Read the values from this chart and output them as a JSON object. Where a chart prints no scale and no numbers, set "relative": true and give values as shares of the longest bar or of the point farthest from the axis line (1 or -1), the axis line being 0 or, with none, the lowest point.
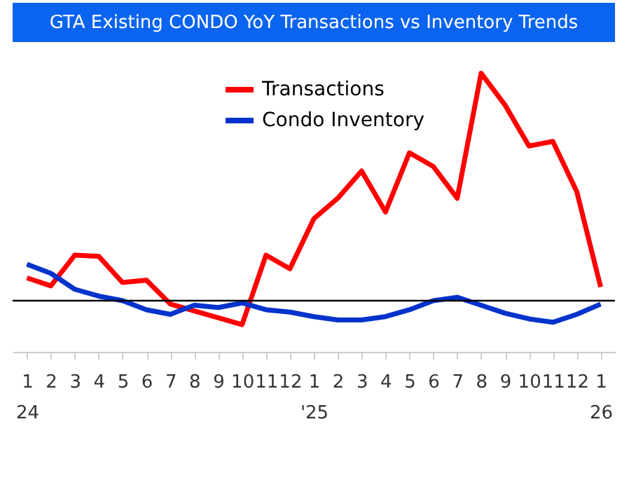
{
  "chart_data": {
    "type": "line",
    "title": "GTA Existing CONDO YoY Transactions vs Inventory Trends",
    "categories": [
      "1\n24",
      "2",
      "3",
      "4",
      "5",
      "6",
      "7",
      "8",
      "9",
      "10",
      "11",
      "12",
      "1\n'25",
      "2",
      "3",
      "4",
      "5",
      "6",
      "7",
      "8",
      "9",
      "10",
      "11",
      "12",
      "1\n26"
    ],
    "relative": true,
    "legend": "top",
    "grid": false,
    "marker": "none",
    "line_style": "solid",
    "series": [
      {
        "name": "Transactions",
        "color": "#ff0000",
        "values": [
          0.1,
          0.065,
          0.2,
          0.195,
          0.08,
          0.09,
          -0.015,
          -0.045,
          -0.075,
          -0.105,
          0.2,
          0.14,
          0.36,
          0.45,
          0.57,
          0.39,
          0.65,
          0.59,
          0.45,
          1.0,
          0.86,
          0.68,
          0.7,
          0.48,
          0.06
        ]
      },
      {
        "name": "Condo Inventory",
        "color": "#0033cc",
        "values": [
          0.16,
          0.12,
          0.05,
          0.02,
          0.0,
          -0.04,
          -0.06,
          -0.02,
          -0.03,
          -0.01,
          -0.04,
          -0.05,
          -0.07,
          -0.085,
          -0.085,
          -0.07,
          -0.04,
          0.0,
          0.015,
          -0.02,
          -0.055,
          -0.08,
          -0.095,
          -0.06,
          -0.015
        ]
      }
    ]
  }
}
